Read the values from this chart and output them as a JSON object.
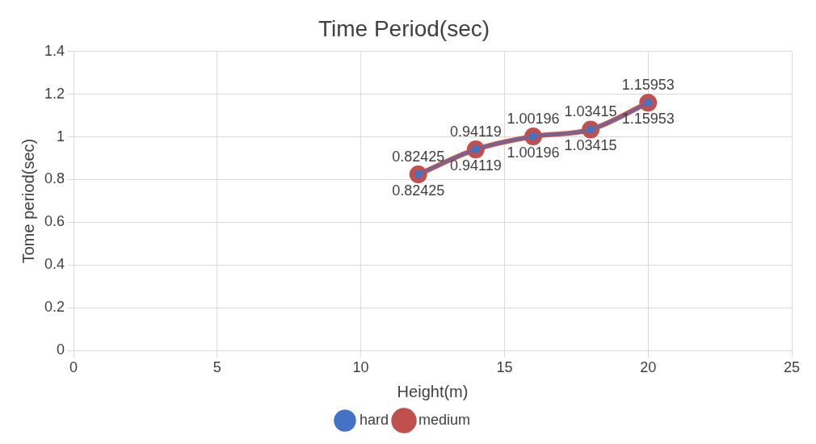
{
  "chart_data": {
    "type": "line",
    "title": "Time Period(sec)",
    "xlabel": "Height(m)",
    "ylabel": "Tome period(sec)",
    "x": [
      12,
      14,
      16,
      18,
      20
    ],
    "series": [
      {
        "name": "hard",
        "color": "#4472c4",
        "values": [
          0.82425,
          0.94119,
          1.00196,
          1.03415,
          1.15953
        ]
      },
      {
        "name": "medium",
        "color": "#c0504d",
        "values": [
          0.82425,
          0.94119,
          1.00196,
          1.03415,
          1.15953
        ]
      }
    ],
    "xlim": [
      0,
      25
    ],
    "xticks": [
      0,
      5,
      10,
      15,
      20,
      25
    ],
    "ylim": [
      0,
      1.4
    ],
    "yticks": [
      0,
      0.2,
      0.4,
      0.6,
      0.8,
      1,
      1.2,
      1.4
    ],
    "grid": true,
    "legend": "bottom",
    "marker": "circle",
    "line_style": "solid",
    "data_labels": true
  }
}
